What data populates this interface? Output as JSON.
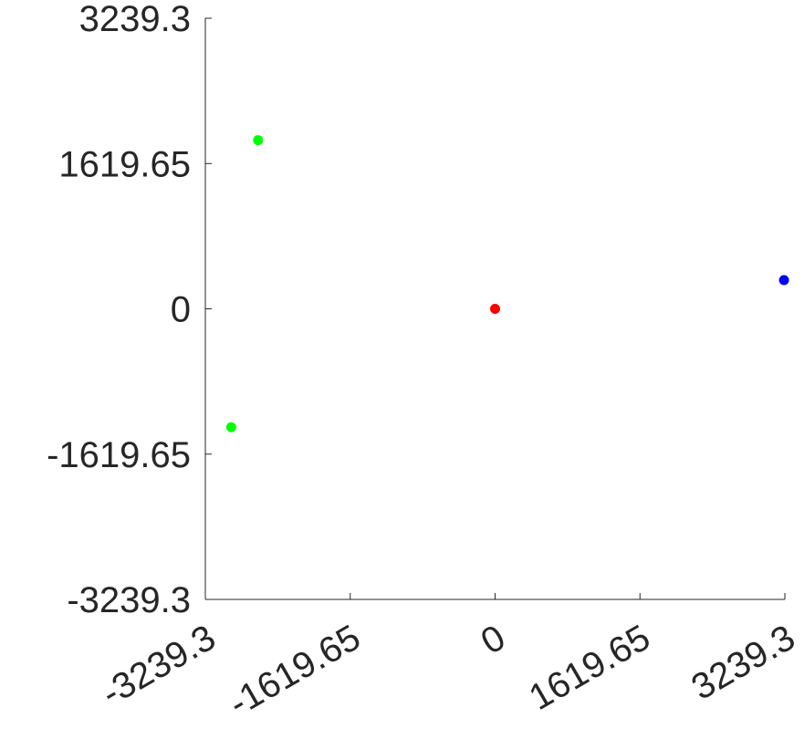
{
  "chart_data": {
    "type": "scatter",
    "title": "",
    "xlabel": "",
    "ylabel": "",
    "xlim": [
      -3239.3,
      3239.3
    ],
    "ylim": [
      -3239.3,
      3239.3
    ],
    "grid": false,
    "x_ticks": [
      -3239.3,
      -1619.65,
      0,
      1619.65,
      3239.3
    ],
    "x_tick_labels": [
      "-3239.3",
      "-1619.65",
      "0",
      "1619.65",
      "3239.3"
    ],
    "y_ticks": [
      -3239.3,
      -1619.65,
      0,
      1619.65,
      3239.3
    ],
    "y_tick_labels": [
      "-3239.3",
      "-1619.65",
      "0",
      "1619.65",
      "3239.3"
    ],
    "points": [
      {
        "x": -2650,
        "y": 1880,
        "color": "#00ff00"
      },
      {
        "x": -2950,
        "y": -1320,
        "color": "#00ff00"
      },
      {
        "x": 0,
        "y": 0,
        "color": "#ff0000"
      },
      {
        "x": 3230,
        "y": 320,
        "color": "#0000ff"
      }
    ]
  }
}
